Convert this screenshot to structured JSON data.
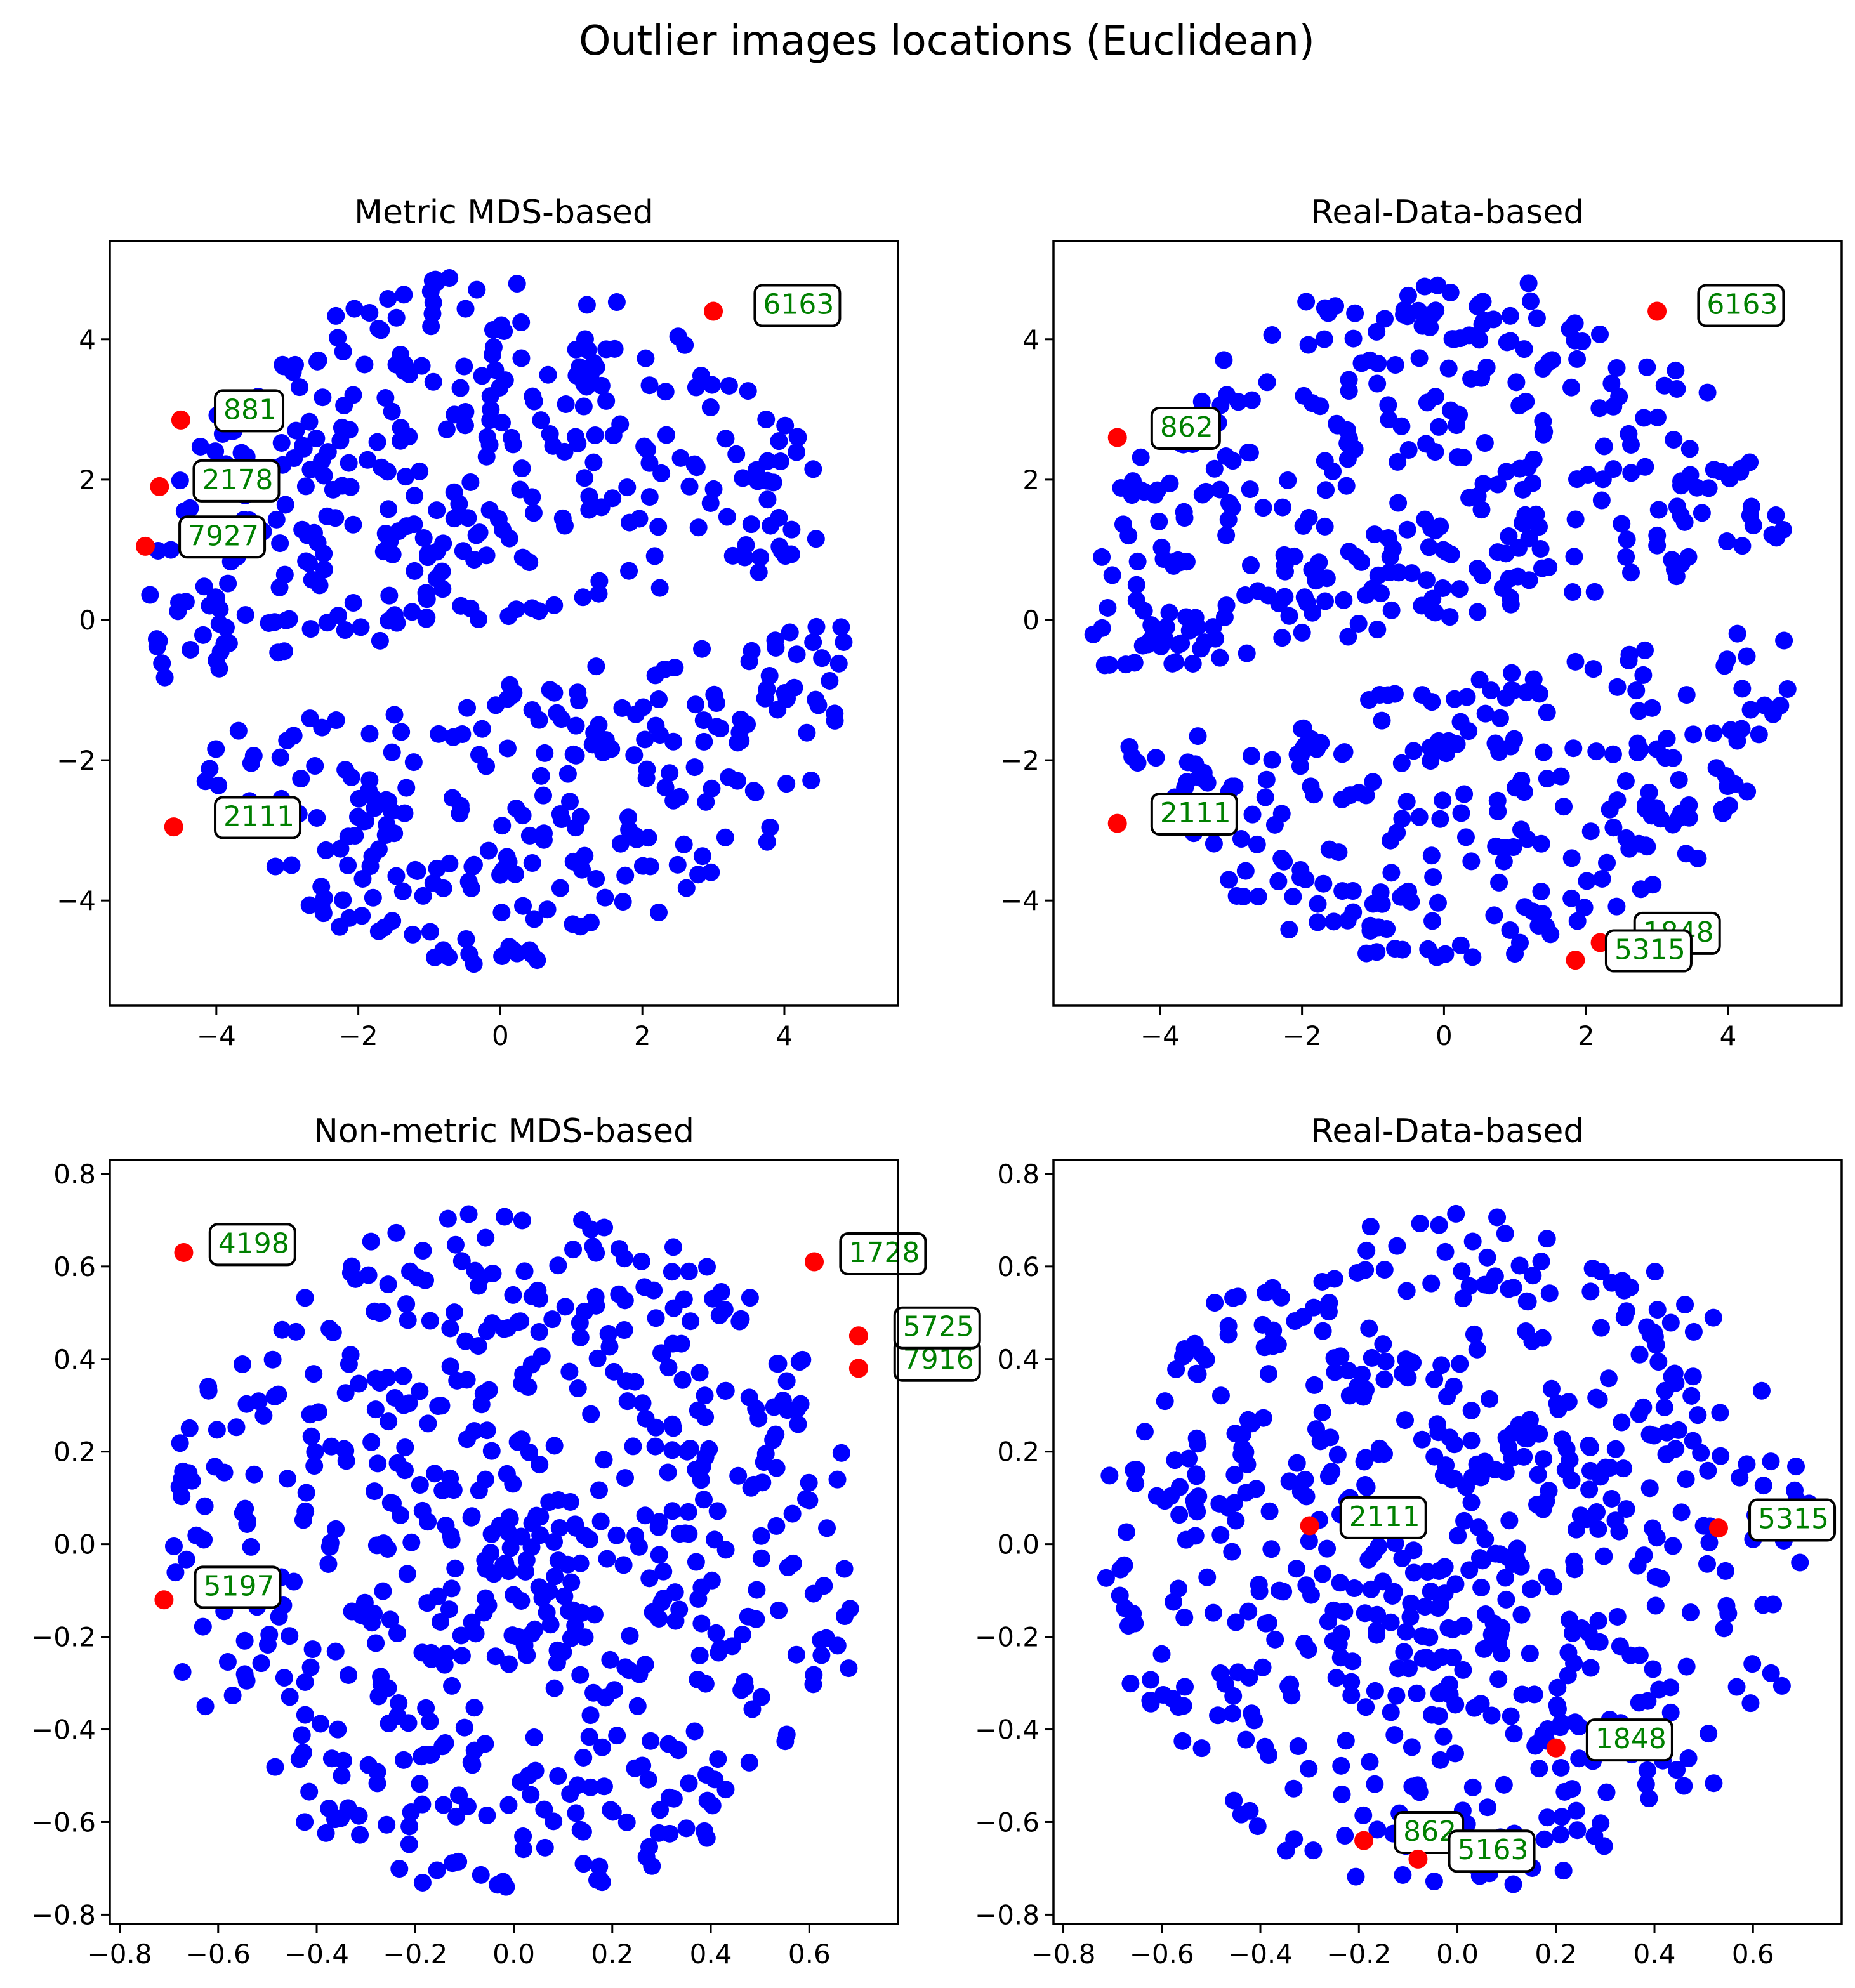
{
  "colors": {
    "normal": "#0000ff",
    "outlier": "#ff0000",
    "label_text": "#008000"
  },
  "chart_data": {
    "title": "Outlier images locations (Euclidean)",
    "panels": [
      {
        "title": "Metric MDS-based",
        "type": "scatter",
        "xlim": [
          -5.5,
          5.6
        ],
        "ylim": [
          -5.5,
          5.4
        ],
        "xticks": [
          -4,
          -2,
          0,
          2,
          4
        ],
        "yticks": [
          -4,
          -2,
          0,
          2,
          4
        ],
        "tick_labels_x": [
          "−4",
          "−2",
          "0",
          "2",
          "4"
        ],
        "tick_labels_y": [
          "−4",
          "−2",
          "0",
          "2",
          "4"
        ],
        "layout": "disc",
        "seed": 11,
        "count": 600,
        "outliers": [
          {
            "id": "6163",
            "x": 3.0,
            "y": 4.4,
            "lx": 3.7,
            "ly": 4.5
          },
          {
            "id": "881",
            "x": -4.5,
            "y": 2.85,
            "lx": -3.9,
            "ly": 3.0
          },
          {
            "id": "2178",
            "x": -4.8,
            "y": 1.9,
            "lx": -4.2,
            "ly": 2.0
          },
          {
            "id": "7927",
            "x": -5.0,
            "y": 1.05,
            "lx": -4.4,
            "ly": 1.2
          },
          {
            "id": "2111",
            "x": -4.6,
            "y": -2.95,
            "lx": -3.9,
            "ly": -2.8
          }
        ]
      },
      {
        "title": "Real-Data-based",
        "type": "scatter",
        "xlim": [
          -5.5,
          5.6
        ],
        "ylim": [
          -5.5,
          5.4
        ],
        "xticks": [
          -4,
          -2,
          0,
          2,
          4
        ],
        "yticks": [
          -4,
          -2,
          0,
          2,
          4
        ],
        "tick_labels_x": [
          "−4",
          "−2",
          "0",
          "2",
          "4"
        ],
        "tick_labels_y": [
          "−4",
          "−2",
          "0",
          "2",
          "4"
        ],
        "layout": "disc",
        "seed": 23,
        "count": 600,
        "outliers": [
          {
            "id": "6163",
            "x": 3.0,
            "y": 4.4,
            "lx": 3.7,
            "ly": 4.5
          },
          {
            "id": "862",
            "x": -4.6,
            "y": 2.6,
            "lx": -4.0,
            "ly": 2.75
          },
          {
            "id": "2111",
            "x": -4.6,
            "y": -2.9,
            "lx": -4.0,
            "ly": -2.75
          },
          {
            "id": "1848",
            "x": 2.2,
            "y": -4.6,
            "lx": 2.8,
            "ly": -4.45
          },
          {
            "id": "5315",
            "x": 1.85,
            "y": -4.85,
            "lx": 2.4,
            "ly": -4.7
          }
        ]
      },
      {
        "title": "Non-metric MDS-based",
        "type": "scatter",
        "xlim": [
          -0.82,
          0.78
        ],
        "ylim": [
          -0.82,
          0.83
        ],
        "xticks": [
          -0.8,
          -0.6,
          -0.4,
          -0.2,
          0.0,
          0.2,
          0.4,
          0.6
        ],
        "yticks": [
          -0.8,
          -0.6,
          -0.4,
          -0.2,
          0.0,
          0.2,
          0.4,
          0.6,
          0.8
        ],
        "tick_labels_x": [
          "−0.8",
          "−0.6",
          "−0.4",
          "−0.2",
          "0.0",
          "0.2",
          "0.4",
          "0.6"
        ],
        "tick_labels_y": [
          "−0.8",
          "−0.6",
          "−0.4",
          "−0.2",
          "0.0",
          "0.2",
          "0.4",
          "0.6",
          "0.8"
        ],
        "layout": "cloud",
        "seed": 37,
        "count": 600,
        "outliers": [
          {
            "id": "4198",
            "x": -0.67,
            "y": 0.63,
            "lx": -0.6,
            "ly": 0.65
          },
          {
            "id": "1728",
            "x": 0.61,
            "y": 0.61,
            "lx": 0.68,
            "ly": 0.63
          },
          {
            "id": "7916",
            "x": 0.7,
            "y": 0.38,
            "lx": 0.79,
            "ly": 0.4
          },
          {
            "id": "5725",
            "x": 0.7,
            "y": 0.45,
            "lx": 0.79,
            "ly": 0.47
          },
          {
            "id": "5197",
            "x": -0.71,
            "y": -0.12,
            "lx": -0.63,
            "ly": -0.09
          }
        ]
      },
      {
        "title": "Real-Data-based",
        "type": "scatter",
        "xlim": [
          -0.82,
          0.78
        ],
        "ylim": [
          -0.82,
          0.83
        ],
        "xticks": [
          -0.8,
          -0.6,
          -0.4,
          -0.2,
          0.0,
          0.2,
          0.4,
          0.6
        ],
        "yticks": [
          -0.8,
          -0.6,
          -0.4,
          -0.2,
          0.0,
          0.2,
          0.4,
          0.6,
          0.8
        ],
        "tick_labels_x": [
          "−0.8",
          "−0.6",
          "−0.4",
          "−0.2",
          "0.0",
          "0.2",
          "0.4",
          "0.6"
        ],
        "tick_labels_y": [
          "−0.8",
          "−0.6",
          "−0.4",
          "−0.2",
          "0.0",
          "0.2",
          "0.4",
          "0.6",
          "0.8"
        ],
        "layout": "cloud",
        "seed": 53,
        "count": 600,
        "outliers": [
          {
            "id": "2111",
            "x": -0.3,
            "y": 0.04,
            "lx": -0.22,
            "ly": 0.06
          },
          {
            "id": "5315",
            "x": 0.53,
            "y": 0.035,
            "lx": 0.61,
            "ly": 0.055
          },
          {
            "id": "1848",
            "x": 0.2,
            "y": -0.44,
            "lx": 0.28,
            "ly": -0.42
          },
          {
            "id": "862",
            "x": -0.19,
            "y": -0.64,
            "lx": -0.11,
            "ly": -0.62
          },
          {
            "id": "5163",
            "x": -0.08,
            "y": -0.68,
            "lx": 0.0,
            "ly": -0.66
          }
        ]
      }
    ]
  }
}
